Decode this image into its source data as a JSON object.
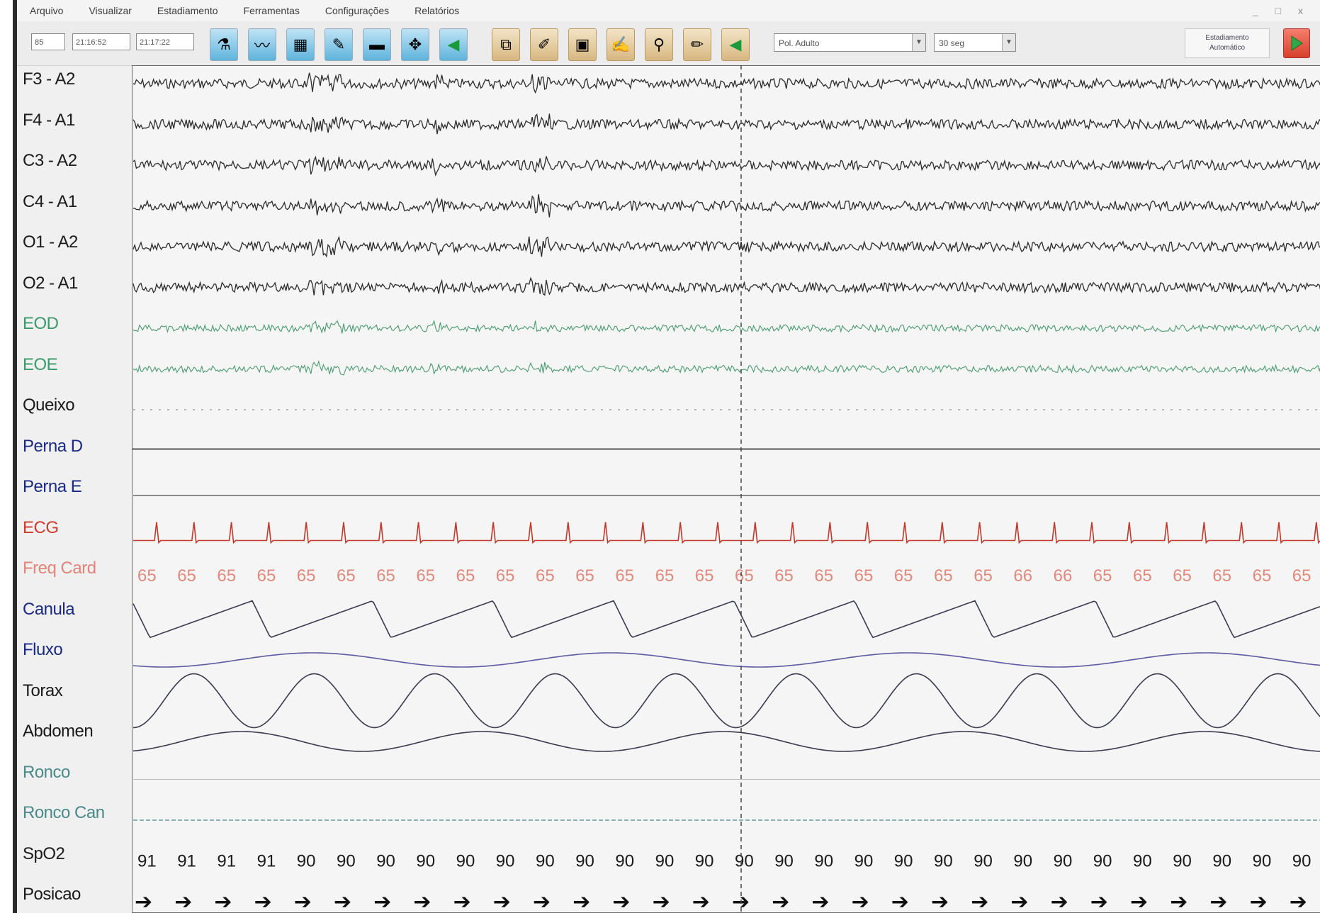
{
  "menubar": {
    "items": [
      "Arquivo",
      "Visualizar",
      "Estadiamento",
      "Ferramentas",
      "Configurações",
      "Relatórios"
    ],
    "window_controls": "_ □ x"
  },
  "toolbar": {
    "inputs": [
      "85",
      "21:16:52",
      "21:17:22"
    ],
    "blue_icons": [
      "montage-icon",
      "signal-icon",
      "filter-icon",
      "pen-icon",
      "marker-icon",
      "cursor-icon",
      "prev-epoch-icon"
    ],
    "tan_icons": [
      "event-icon",
      "edit-icon",
      "display-icon",
      "report-icon",
      "zoom-icon",
      "note-icon",
      "back-icon"
    ],
    "montage_select": "Pol. Adulto",
    "epoch_select": "30 seg",
    "auto_button": "Estadiamento Automático"
  },
  "colors": {
    "eeg": "#2b2b2b",
    "eog": "#4a9a72",
    "ecg": "#c0392b",
    "freq_card": "#e08a7c",
    "respiratory_dark": "#3a3a50",
    "respiratory_blue": "#5a5aa0",
    "ronco": "#4a8a8a",
    "label_blue": "#1a2a80"
  },
  "channels": [
    {
      "label": "F3 - A2",
      "color": "#1a1a1a"
    },
    {
      "label": "F4 - A1",
      "color": "#1a1a1a"
    },
    {
      "label": "C3 - A2",
      "color": "#1a1a1a"
    },
    {
      "label": "C4 - A1",
      "color": "#1a1a1a"
    },
    {
      "label": "O1 - A2",
      "color": "#1a1a1a"
    },
    {
      "label": "O2 - A1",
      "color": "#1a1a1a"
    },
    {
      "label": "EOD",
      "color": "#3a9a6a"
    },
    {
      "label": "EOE",
      "color": "#3a9a6a"
    },
    {
      "label": "Queixo",
      "color": "#1a1a1a"
    },
    {
      "label": "Perna D",
      "color": "#1a2a80"
    },
    {
      "label": "Perna E",
      "color": "#1a2a80"
    },
    {
      "label": "ECG",
      "color": "#d03a2a"
    },
    {
      "label": "Freq Card",
      "color": "#e0857a"
    },
    {
      "label": "Canula",
      "color": "#1a2a80"
    },
    {
      "label": "Fluxo",
      "color": "#1a2a80"
    },
    {
      "label": "Torax",
      "color": "#1a1a1a"
    },
    {
      "label": "Abdomen",
      "color": "#1a1a1a"
    },
    {
      "label": "Ronco",
      "color": "#4a8a8a"
    },
    {
      "label": "Ronco Can",
      "color": "#4a8a8a"
    },
    {
      "label": "SpO2",
      "color": "#1a1a1a"
    },
    {
      "label": "Posicao",
      "color": "#1a1a1a"
    }
  ],
  "freq_card_values": [
    "65",
    "65",
    "65",
    "65",
    "65",
    "65",
    "65",
    "65",
    "65",
    "65",
    "65",
    "65",
    "65",
    "65",
    "65",
    "65",
    "65",
    "65",
    "65",
    "65",
    "65",
    "65",
    "66",
    "66",
    "65",
    "65",
    "65",
    "65",
    "65",
    "65"
  ],
  "spo2_values": [
    "91",
    "91",
    "91",
    "91",
    "90",
    "90",
    "90",
    "90",
    "90",
    "90",
    "90",
    "90",
    "90",
    "90",
    "90",
    "90",
    "90",
    "90",
    "90",
    "90",
    "90",
    "90",
    "90",
    "90",
    "90",
    "90",
    "90",
    "90",
    "90",
    "90"
  ],
  "posicao_symbol": "➔",
  "posicao_count": 30
}
